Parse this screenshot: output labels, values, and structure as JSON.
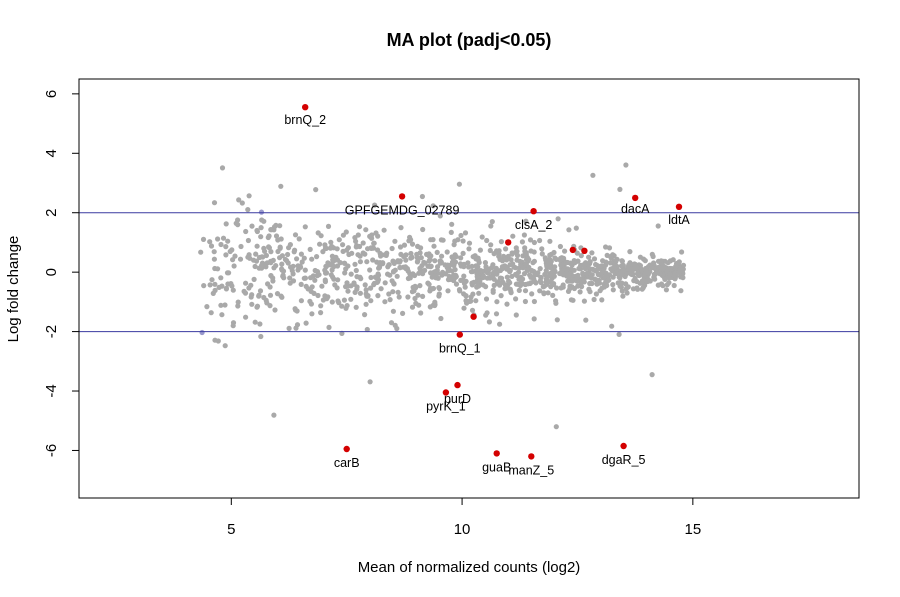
{
  "chart_data": {
    "type": "scatter",
    "title": "MA plot (padj<0.05)",
    "xlabel": "Mean of normalized counts (log2)",
    "ylabel": "Log fold change",
    "xlim": [
      1.7,
      18.6
    ],
    "ylim": [
      -7.6,
      6.5
    ],
    "x_ticks": [
      5,
      10,
      15
    ],
    "y_ticks": [
      -6,
      -4,
      -2,
      0,
      2,
      4,
      6
    ],
    "x_tick_labels": [
      "5",
      "10",
      "15"
    ],
    "y_tick_labels": [
      "-6",
      "-4",
      "-2",
      "0",
      "2",
      "4",
      "6"
    ],
    "reference_lines": [
      {
        "y": 2,
        "color": "#3a3aa0"
      },
      {
        "y": -2,
        "color": "#3a3aa0"
      }
    ],
    "grid": false,
    "colors": {
      "background_points": "#a9a9a9",
      "highlighted_points": "#d40000",
      "threshold_lines": "#3a3aa0",
      "near_threshold_points": "#9999cc"
    },
    "background_count": 1250,
    "series": [
      {
        "points": [
          {
            "label": "brnQ_2",
            "x": 6.6,
            "y": 5.55
          },
          {
            "label": "GPFGEMDG_02789",
            "x": 8.7,
            "y": 2.55
          },
          {
            "label": "clsA_2",
            "x": 11.55,
            "y": 2.05
          },
          {
            "label": "dacA",
            "x": 13.75,
            "y": 2.5
          },
          {
            "label": "ldtA",
            "x": 14.7,
            "y": 2.2
          },
          {
            "label": "",
            "x": 11.0,
            "y": 1.0
          },
          {
            "label": "",
            "x": 12.4,
            "y": 0.75
          },
          {
            "label": "",
            "x": 12.65,
            "y": 0.72
          },
          {
            "label": "",
            "x": 10.25,
            "y": -1.5
          },
          {
            "label": "brnQ_1",
            "x": 9.95,
            "y": -2.1
          },
          {
            "label": "purD",
            "x": 9.9,
            "y": -3.8
          },
          {
            "label": "pyrK_1",
            "x": 9.65,
            "y": -4.05
          },
          {
            "label": "carB",
            "x": 7.5,
            "y": -5.95
          },
          {
            "label": "guaB",
            "x": 10.75,
            "y": -6.1
          },
          {
            "label": "manZ_5",
            "x": 11.5,
            "y": -6.2
          },
          {
            "label": "dgaR_5",
            "x": 13.5,
            "y": -5.85
          }
        ]
      }
    ]
  }
}
